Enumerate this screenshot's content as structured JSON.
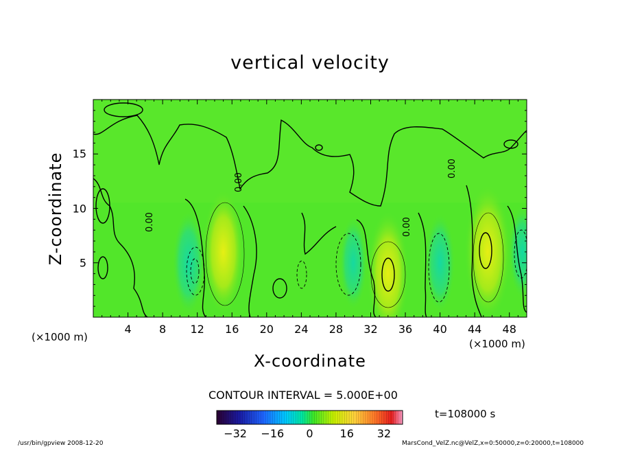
{
  "chart_data": {
    "type": "heatmap",
    "title": "vertical velocity",
    "xlabel": "X-coordinate",
    "ylabel": "Z-coordinate",
    "xunit": "(×1000 m)",
    "xlim": [
      0,
      50
    ],
    "ylim": [
      0,
      20
    ],
    "xticks": [
      "4",
      "8",
      "12",
      "16",
      "20",
      "24",
      "28",
      "32",
      "36",
      "40",
      "44",
      "48"
    ],
    "yticks": [
      "5",
      "10",
      "15"
    ],
    "contour_interval_text": "CONTOUR INTERVAL = 5.000E+00",
    "contour_label": "0.00",
    "time_text": "t=108000 s",
    "colorbar": {
      "range": [
        -40,
        40
      ],
      "ticks": [
        "−32",
        "−16",
        "0",
        "16",
        "32"
      ],
      "colors": [
        "#2b0030",
        "#1a1aa0",
        "#1e64ff",
        "#00c8ff",
        "#00e6a0",
        "#3ce628",
        "#c8f000",
        "#ffd23c",
        "#ff7828",
        "#e61e1e",
        "#ff9ec8"
      ]
    },
    "features": [
      {
        "type": "updraft",
        "x": 15,
        "z": 6,
        "w": 12
      },
      {
        "type": "downdraft",
        "x": 11,
        "z": 5,
        "w": -8
      },
      {
        "type": "updraft",
        "x": 34,
        "z": 4,
        "w": 12
      },
      {
        "type": "downdraft",
        "x": 30,
        "z": 5,
        "w": -6
      },
      {
        "type": "downdraft",
        "x": 40,
        "z": 5,
        "w": -7
      },
      {
        "type": "updraft",
        "x": 45.5,
        "z": 6,
        "w": 14
      },
      {
        "type": "downdraft",
        "x": 49.5,
        "z": 6,
        "w": -6
      }
    ]
  },
  "footer": {
    "left": "/usr/bin/gpview  2008-12-20",
    "right": "MarsCond_VelZ.nc@VelZ,x=0:50000,z=0:20000,t=108000"
  },
  "colors": {
    "background_field": "#52e62a",
    "frame": "#000000"
  }
}
